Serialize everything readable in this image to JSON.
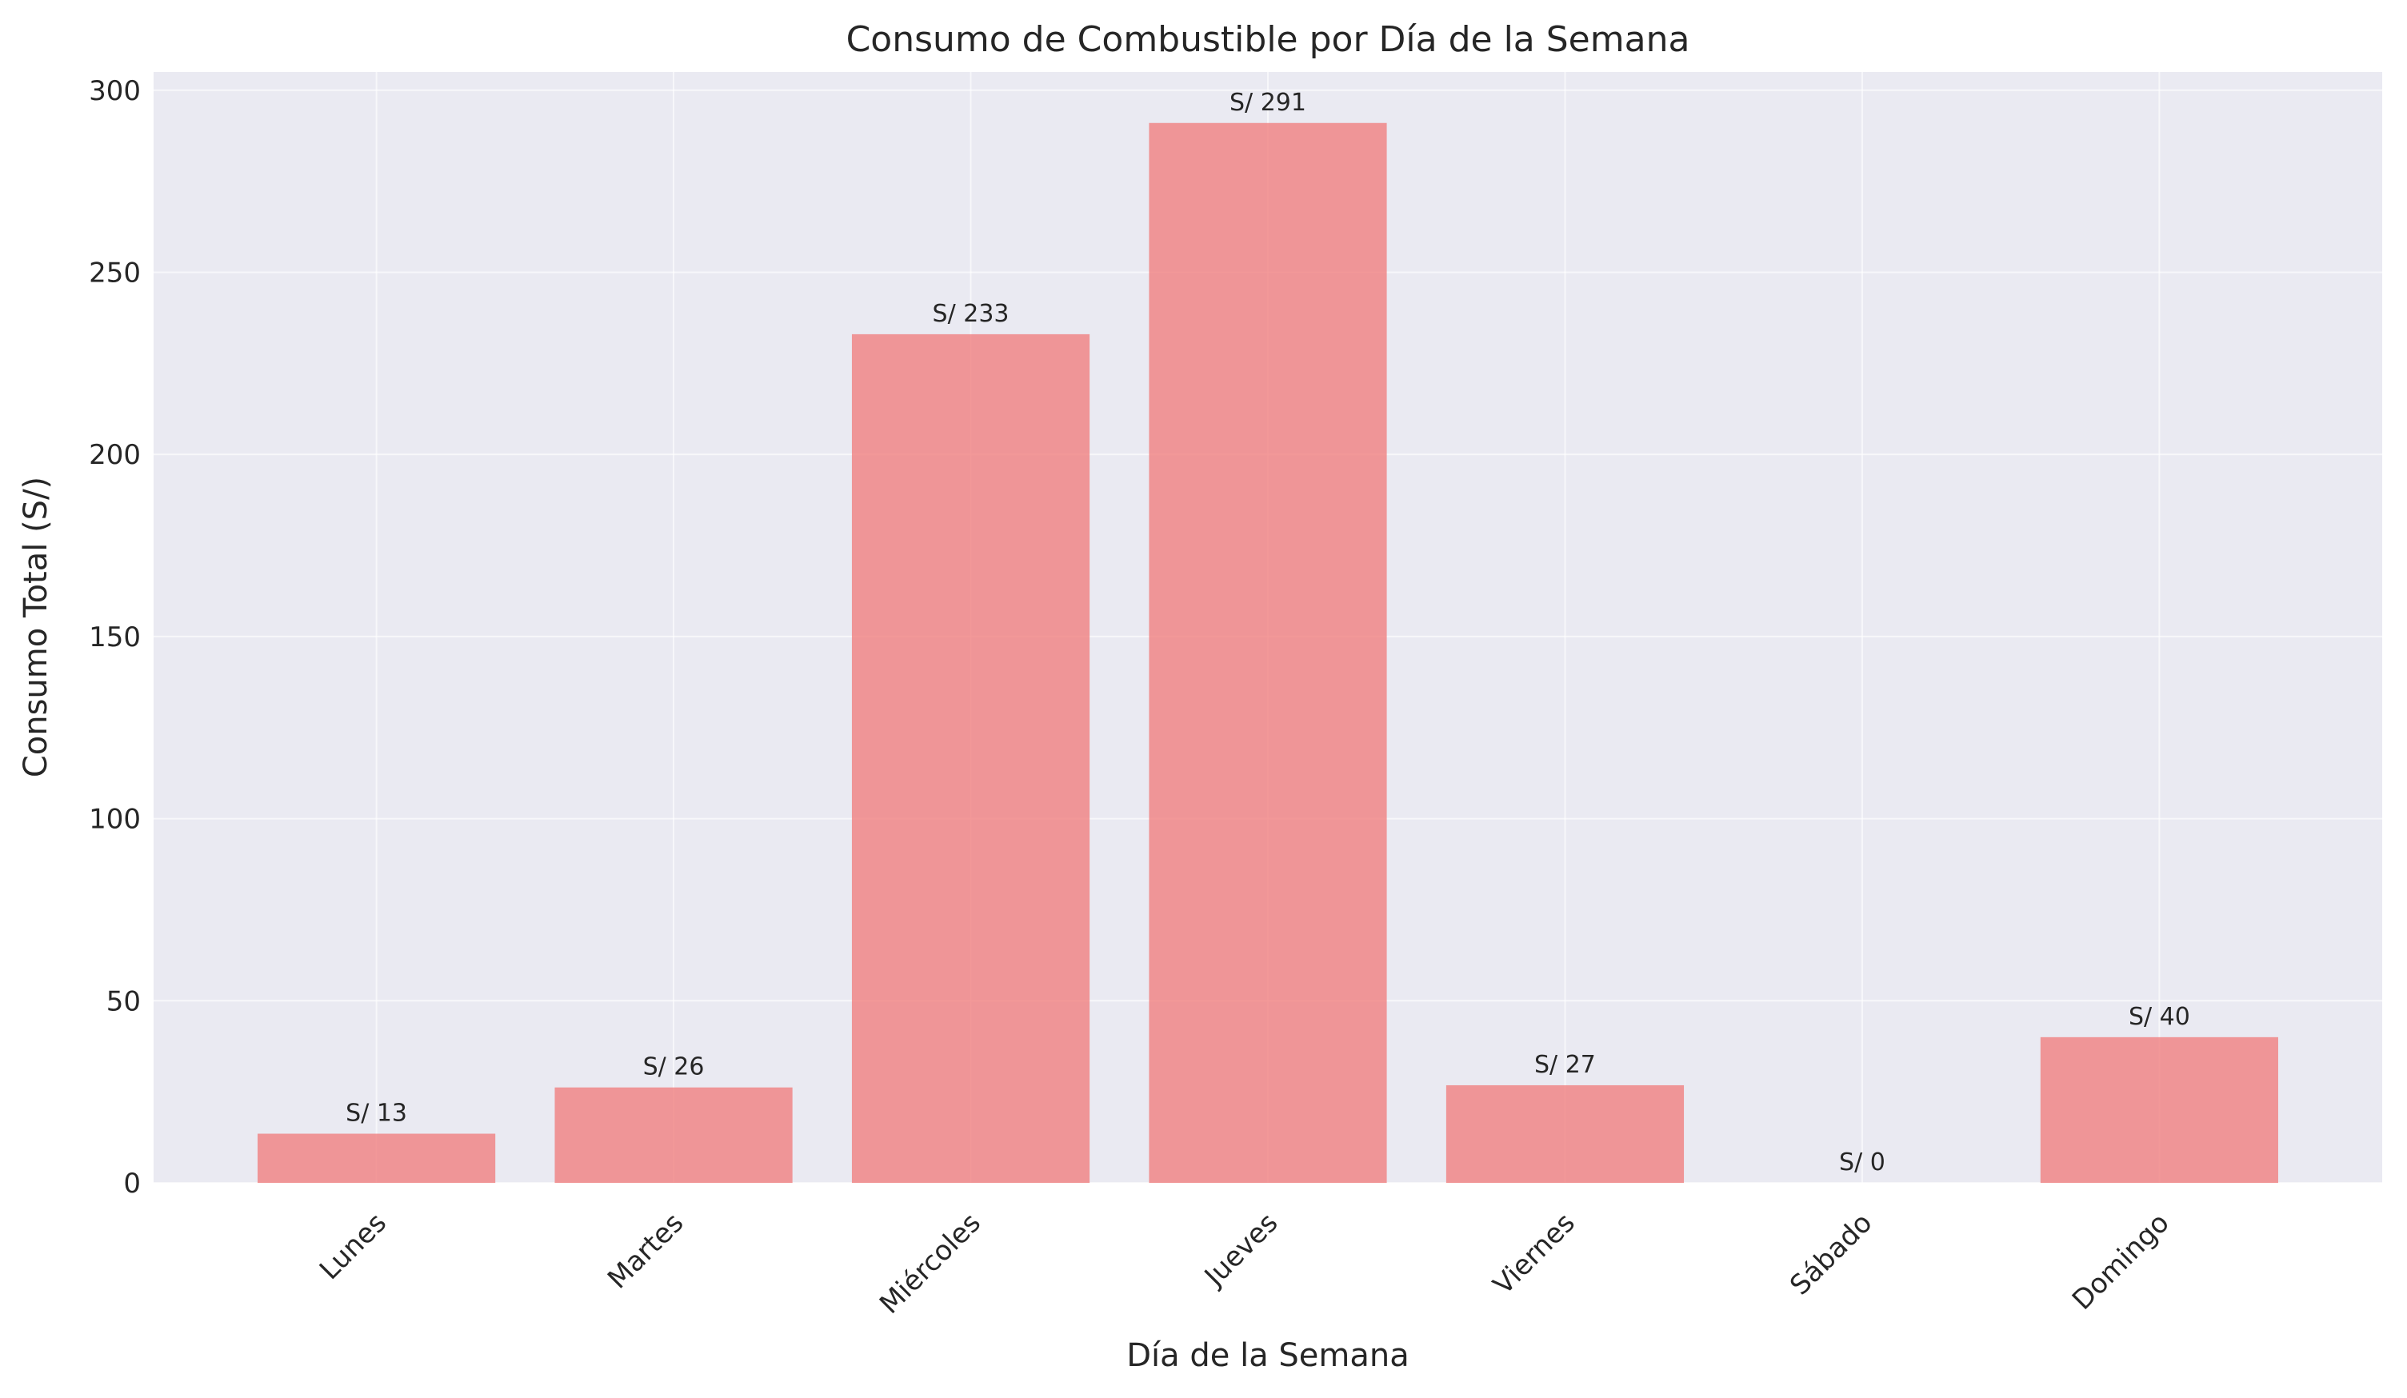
{
  "chart_data": {
    "type": "bar",
    "title": "Consumo de Combustible por Día de la Semana",
    "xlabel": "Día de la Semana",
    "ylabel": "Consumo Total (S/)",
    "categories": [
      "Lunes",
      "Martes",
      "Miércoles",
      "Jueves",
      "Viernes",
      "Sábado",
      "Domingo"
    ],
    "values": [
      13.5,
      26.2,
      233,
      291,
      26.8,
      0,
      40
    ],
    "data_labels": [
      "S/ 13",
      "S/ 26",
      "S/ 233",
      "S/ 291",
      "S/ 27",
      "S/ 0",
      "S/ 40"
    ],
    "ylim": [
      0,
      305
    ],
    "yticks": [
      0,
      50,
      100,
      150,
      200,
      250,
      300
    ],
    "ytick_labels": [
      "0",
      "50",
      "100",
      "150",
      "200",
      "250",
      "300"
    ],
    "grid": true,
    "x_tick_rotation_deg": 45,
    "colors": {
      "bar": "#f08080",
      "plot_background": "#eaeaf2",
      "grid": "#ffffff",
      "text": "#262626"
    }
  }
}
